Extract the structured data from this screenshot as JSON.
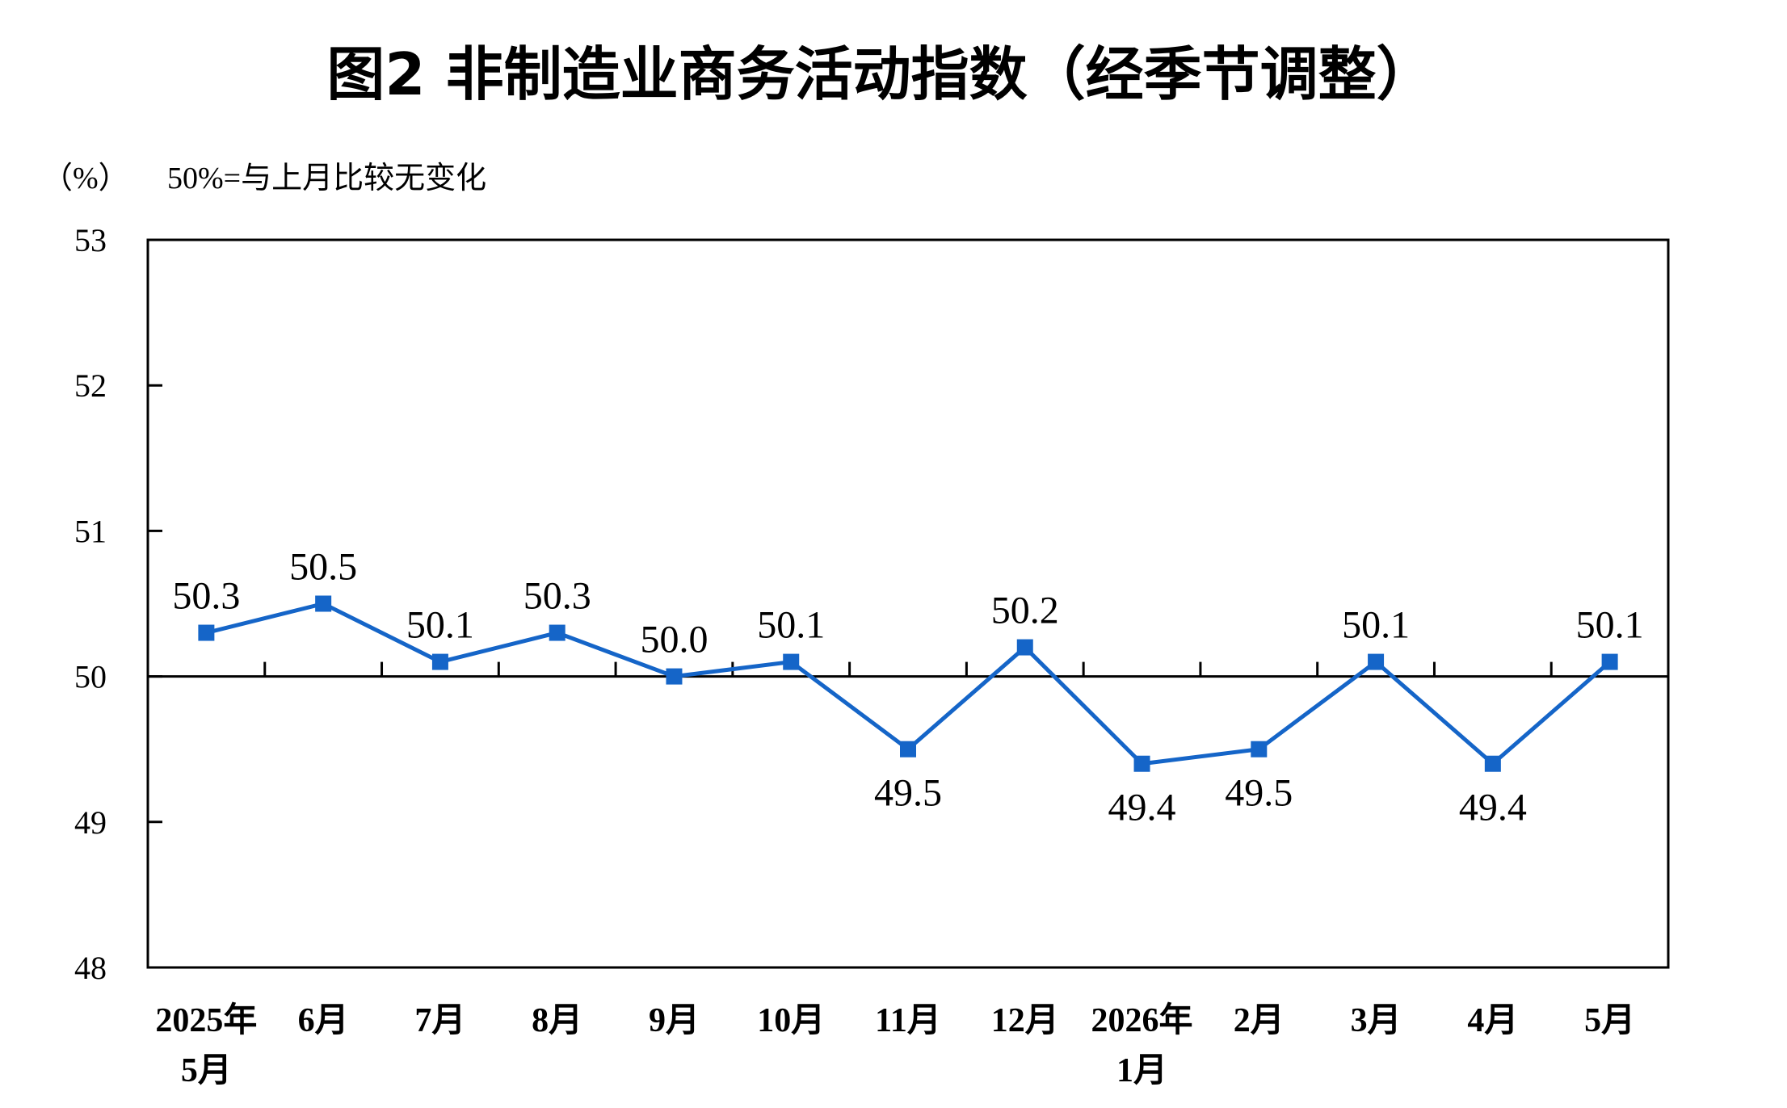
{
  "chart_data": {
    "type": "line",
    "title": "图2  非制造业商务活动指数（经季节调整）",
    "ylabel": "（%）",
    "note": "50%=与上月比较无变化",
    "ylim": [
      48,
      53
    ],
    "yticks": [
      48,
      49,
      50,
      51,
      52,
      53
    ],
    "reference_line": 50,
    "grid": false,
    "categories": [
      [
        "2025年",
        "5月"
      ],
      [
        "6月"
      ],
      [
        "7月"
      ],
      [
        "8月"
      ],
      [
        "9月"
      ],
      [
        "10月"
      ],
      [
        "11月"
      ],
      [
        "12月"
      ],
      [
        "2026年",
        "1月"
      ],
      [
        "2月"
      ],
      [
        "3月"
      ],
      [
        "4月"
      ],
      [
        "5月"
      ]
    ],
    "series": [
      {
        "values": [
          50.3,
          50.5,
          50.1,
          50.3,
          50.0,
          50.1,
          49.5,
          50.2,
          49.4,
          49.5,
          50.1,
          49.4,
          50.1
        ],
        "labels": [
          "50.3",
          "50.5",
          "50.1",
          "50.3",
          "50.0",
          "50.1",
          "49.5",
          "50.2",
          "49.4",
          "49.5",
          "50.1",
          "49.4",
          "50.1"
        ],
        "color": "#1565C8"
      }
    ]
  }
}
